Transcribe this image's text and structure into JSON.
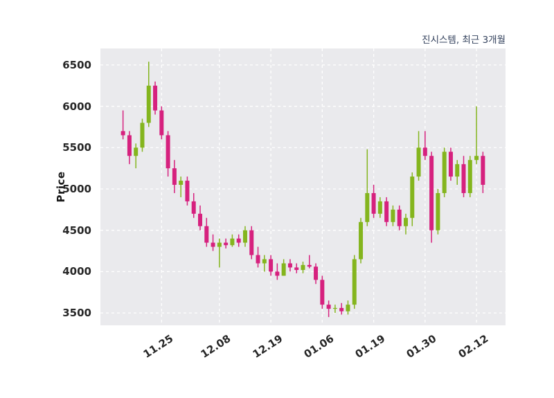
{
  "chart_data": {
    "type": "candlestick",
    "title": "진시스템, 최근 3개월",
    "ylabel": "Price",
    "ylim": [
      3350,
      6700
    ],
    "yticks": [
      3500,
      4000,
      4500,
      5000,
      5500,
      6000,
      6500
    ],
    "xticks": [
      {
        "index": 6,
        "label": "11.25"
      },
      {
        "index": 15,
        "label": "12.08"
      },
      {
        "index": 23,
        "label": "12.19"
      },
      {
        "index": 31,
        "label": "01.06"
      },
      {
        "index": 39,
        "label": "01.19"
      },
      {
        "index": 47,
        "label": "01.30"
      },
      {
        "index": 55,
        "label": "02.12"
      }
    ],
    "grid": true,
    "legend": "none",
    "colors": {
      "up": "#84b51e",
      "down": "#d6217e",
      "plot_bg": "#eaeaed",
      "grid": "#ffffff",
      "title": "#33415c",
      "tick": "#262626"
    },
    "candles_format": [
      "open",
      "high",
      "low",
      "close"
    ],
    "candles": [
      [
        5700,
        5950,
        5600,
        5650
      ],
      [
        5650,
        5700,
        5300,
        5400
      ],
      [
        5400,
        5550,
        5250,
        5500
      ],
      [
        5500,
        5850,
        5450,
        5800
      ],
      [
        5800,
        6540,
        5750,
        6250
      ],
      [
        6250,
        6300,
        5900,
        5950
      ],
      [
        5950,
        6000,
        5600,
        5650
      ],
      [
        5650,
        5700,
        5150,
        5250
      ],
      [
        5250,
        5350,
        4950,
        5050
      ],
      [
        5050,
        5150,
        4900,
        5100
      ],
      [
        5100,
        5150,
        4800,
        4850
      ],
      [
        4850,
        4950,
        4650,
        4700
      ],
      [
        4700,
        4800,
        4500,
        4550
      ],
      [
        4550,
        4650,
        4300,
        4350
      ],
      [
        4350,
        4450,
        4250,
        4300
      ],
      [
        4300,
        4400,
        4050,
        4350
      ],
      [
        4350,
        4400,
        4280,
        4320
      ],
      [
        4320,
        4450,
        4300,
        4400
      ],
      [
        4400,
        4450,
        4300,
        4350
      ],
      [
        4350,
        4550,
        4300,
        4500
      ],
      [
        4500,
        4550,
        4150,
        4200
      ],
      [
        4200,
        4300,
        4050,
        4100
      ],
      [
        4100,
        4200,
        4000,
        4150
      ],
      [
        4150,
        4200,
        3950,
        4000
      ],
      [
        4000,
        4100,
        3900,
        3950
      ],
      [
        3950,
        4150,
        3950,
        4100
      ],
      [
        4100,
        4150,
        4000,
        4050
      ],
      [
        4050,
        4100,
        3980,
        4020
      ],
      [
        4020,
        4120,
        3980,
        4080
      ],
      [
        4080,
        4200,
        4040,
        4060
      ],
      [
        4060,
        4100,
        3850,
        3900
      ],
      [
        3900,
        3950,
        3550,
        3600
      ],
      [
        3600,
        3650,
        3450,
        3550
      ],
      [
        3550,
        3600,
        3500,
        3560
      ],
      [
        3560,
        3620,
        3480,
        3520
      ],
      [
        3520,
        3650,
        3480,
        3600
      ],
      [
        3600,
        4200,
        3550,
        4150
      ],
      [
        4150,
        4650,
        4100,
        4600
      ],
      [
        4600,
        5480,
        4550,
        4950
      ],
      [
        4950,
        5050,
        4650,
        4700
      ],
      [
        4700,
        4900,
        4650,
        4850
      ],
      [
        4850,
        4900,
        4550,
        4600
      ],
      [
        4600,
        4800,
        4550,
        4750
      ],
      [
        4750,
        4800,
        4500,
        4550
      ],
      [
        4550,
        4700,
        4450,
        4650
      ],
      [
        4650,
        5200,
        4550,
        5150
      ],
      [
        5150,
        5700,
        5100,
        5500
      ],
      [
        5500,
        5700,
        5350,
        5400
      ],
      [
        5400,
        5450,
        4350,
        4500
      ],
      [
        4500,
        5000,
        4450,
        4950
      ],
      [
        4950,
        5500,
        4900,
        5450
      ],
      [
        5450,
        5500,
        5100,
        5150
      ],
      [
        5150,
        5350,
        5050,
        5300
      ],
      [
        5300,
        5400,
        4900,
        4950
      ],
      [
        4950,
        5400,
        4900,
        5350
      ],
      [
        5350,
        6000,
        5300,
        5400
      ],
      [
        5400,
        5450,
        4950,
        5050
      ]
    ]
  }
}
